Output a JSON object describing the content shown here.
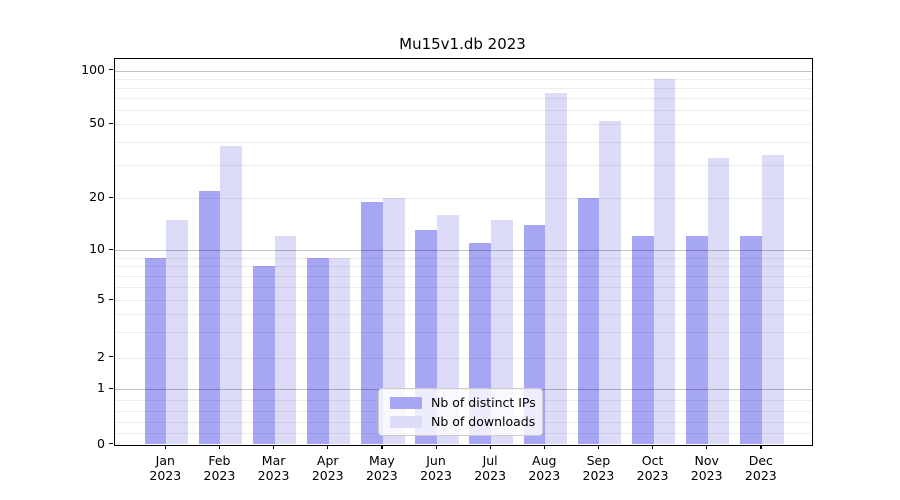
{
  "chart_data": {
    "type": "bar",
    "title": "Mu15v1.db 2023",
    "scale": "symlog",
    "grid": true,
    "ylim": [
      0,
      100
    ],
    "ytick_values": [
      0,
      1,
      2,
      5,
      10,
      20,
      50,
      100
    ],
    "ytick_labels": [
      "0",
      "1",
      "2",
      "5",
      "10",
      "20",
      "50",
      "100"
    ],
    "months": [
      "Jan",
      "Feb",
      "Mar",
      "Apr",
      "May",
      "Jun",
      "Jul",
      "Aug",
      "Sep",
      "Oct",
      "Nov",
      "Dec"
    ],
    "year_label": "2023",
    "categories": [
      "Jan 2023",
      "Feb 2023",
      "Mar 2023",
      "Apr 2023",
      "May 2023",
      "Jun 2023",
      "Jul 2023",
      "Aug 2023",
      "Sep 2023",
      "Oct 2023",
      "Nov 2023",
      "Dec 2023"
    ],
    "series": [
      {
        "name": "Nb of distinct IPs",
        "color": "#a6a6f5",
        "values": [
          9,
          22,
          8,
          9,
          19,
          13,
          11,
          14,
          20,
          12,
          12,
          12
        ]
      },
      {
        "name": "Nb of downloads",
        "color": "#dcdcf9",
        "values": [
          15,
          38,
          12,
          9,
          20,
          16,
          15,
          75,
          52,
          90,
          33,
          34
        ]
      }
    ],
    "legend_position": "bottom-center"
  },
  "legend": {
    "ips_label": "Nb of distinct IPs",
    "downloads_label": "Nb of downloads"
  },
  "title": "Mu15v1.db 2023"
}
